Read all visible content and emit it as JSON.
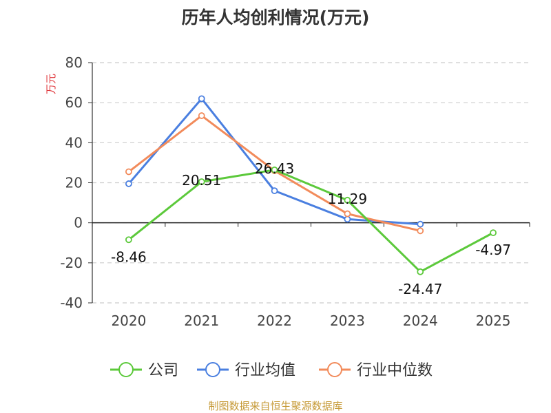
{
  "title": "历年人均创利情况(万元)",
  "source_note": "制图数据来自恒生聚源数据库",
  "chart_data": {
    "type": "line",
    "title": "历年人均创利情况(万元)",
    "xlabel": "",
    "ylabel": "万元",
    "categories": [
      "2020",
      "2021",
      "2022",
      "2023",
      "2024",
      "2025"
    ],
    "ylim": [
      -40,
      80
    ],
    "yticks": [
      80,
      60,
      40,
      20,
      0,
      -20,
      -40
    ],
    "grid": true,
    "legend_position": "bottom",
    "series": [
      {
        "name": "公司",
        "color": "#5cc93b",
        "values": [
          -8.46,
          20.51,
          26.43,
          11.29,
          -24.47,
          -4.97
        ],
        "labels": [
          "-8.46",
          "20.51",
          "26.43",
          "11.29",
          "-24.47",
          "-4.97"
        ]
      },
      {
        "name": "行业均值",
        "color": "#4a7fe0",
        "values": [
          19.5,
          62.0,
          16.0,
          1.8,
          -0.7,
          null
        ],
        "labels": []
      },
      {
        "name": "行业中位数",
        "color": "#f28b5b",
        "values": [
          25.5,
          53.5,
          26.0,
          4.5,
          -4.0,
          null
        ],
        "labels": []
      }
    ]
  }
}
